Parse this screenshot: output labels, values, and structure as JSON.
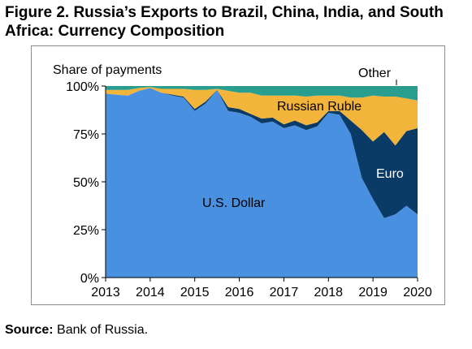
{
  "figure_title": "Figure 2. Russia’s Exports to Brazil, China, India, and South Africa: Currency Composition",
  "source": {
    "label": "Source:",
    "text": " Bank of Russia."
  },
  "colors": {
    "usd": "#4a90e0",
    "euro": "#0a3a66",
    "ruble": "#f3b43c",
    "other": "#2a9e8e"
  },
  "chart_data": {
    "type": "area",
    "stacked": true,
    "ylabel": "Share of payments",
    "yticks": [
      "0%",
      "25%",
      "50%",
      "75%",
      "100%"
    ],
    "ylim": [
      0,
      100
    ],
    "xticks": [
      "2013",
      "2014",
      "2015",
      "2016",
      "2017",
      "2018",
      "2019",
      "2020"
    ],
    "xlim": [
      2013,
      2020
    ],
    "x": [
      2013.0,
      2013.25,
      2013.5,
      2013.75,
      2014.0,
      2014.25,
      2014.5,
      2014.75,
      2015.0,
      2015.25,
      2015.5,
      2015.75,
      2016.0,
      2016.25,
      2016.5,
      2016.75,
      2017.0,
      2017.25,
      2017.5,
      2017.75,
      2018.0,
      2018.25,
      2018.5,
      2018.75,
      2019.0,
      2019.25,
      2019.5,
      2019.75,
      2020.0
    ],
    "series": [
      {
        "name": "U.S. Dollar",
        "values": [
          96,
          95.5,
          95,
          97.5,
          99,
          96.5,
          95,
          94,
          87,
          91,
          98,
          87,
          86,
          84,
          80.5,
          81.5,
          78,
          79.5,
          77,
          79,
          86,
          85,
          75,
          52,
          41,
          31,
          33,
          37.5,
          33
        ]
      },
      {
        "name": "Euro",
        "values": [
          0,
          0,
          0,
          0,
          0,
          0,
          0.5,
          0.5,
          1,
          1,
          0,
          2,
          2,
          1.5,
          2.5,
          2,
          2,
          2.5,
          2.5,
          2,
          1,
          2,
          7,
          25,
          30,
          45,
          36,
          39,
          45
        ]
      },
      {
        "name": "Russian Ruble",
        "values": [
          2,
          2.5,
          3,
          1.5,
          0.5,
          2,
          3,
          4,
          10,
          6,
          0.5,
          8.5,
          8.5,
          11,
          12,
          11.5,
          15,
          13,
          15,
          14,
          8,
          8,
          12,
          17,
          24,
          18.5,
          25.5,
          17,
          14.5
        ]
      },
      {
        "name": "Other",
        "values": [
          2,
          2,
          2,
          1,
          0.5,
          1.5,
          1.5,
          1.5,
          2,
          2,
          1.5,
          2.5,
          3.5,
          3.5,
          5,
          5,
          5,
          5,
          5.5,
          5,
          5,
          5,
          6,
          6,
          5,
          5.5,
          5.5,
          6.5,
          7.5
        ]
      }
    ]
  }
}
